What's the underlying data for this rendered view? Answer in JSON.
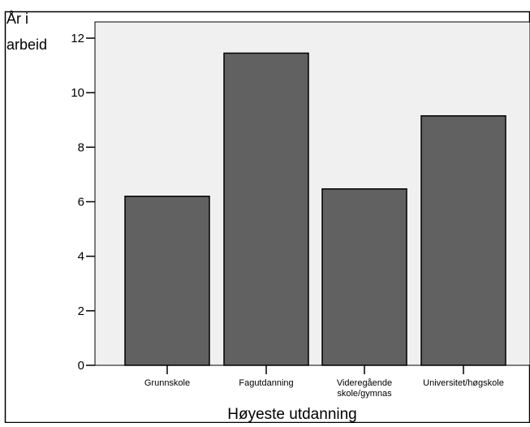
{
  "chart_data": {
    "type": "bar",
    "categories": [
      [
        "Grunnskole"
      ],
      [
        "Fagutdanning"
      ],
      [
        "Videregående",
        "skole/gymnas"
      ],
      [
        "Universitet/høgskole"
      ]
    ],
    "values": [
      6.2,
      11.45,
      6.47,
      9.15
    ],
    "xlabel": "Høyeste utdanning",
    "ylabel": [
      "År i",
      "arbeid"
    ],
    "ylim": [
      0,
      12
    ],
    "yticks": [
      0,
      2,
      4,
      6,
      8,
      10,
      12
    ],
    "grid": false,
    "bar_color": "#616161",
    "plot_background": "#f0f0f0"
  }
}
